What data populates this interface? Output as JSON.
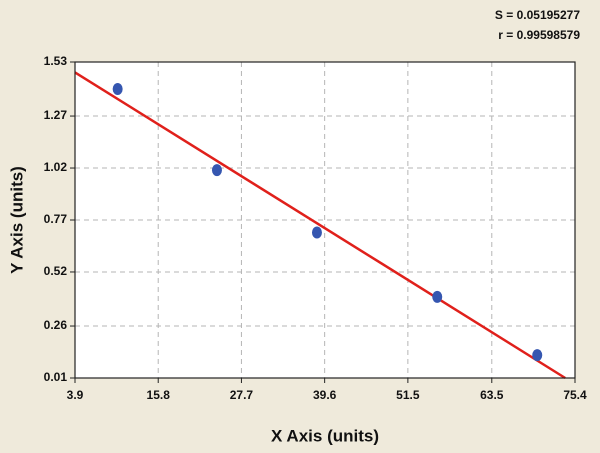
{
  "chart_data": {
    "type": "scatter",
    "x_label": "X Axis (units)",
    "y_label": "Y Axis (units)",
    "annotations": [
      "S = 0.05195277",
      "r = 0.99598579"
    ],
    "x": [
      10.0,
      24.2,
      38.5,
      55.7,
      70.0
    ],
    "values": [
      1.4,
      1.01,
      0.71,
      0.4,
      0.12
    ],
    "color": "#3556b0",
    "fit": {
      "x": [
        3.9,
        74.0
      ],
      "values": [
        1.48,
        0.01
      ],
      "color": "#e0201b"
    },
    "xlim": [
      3.9,
      75.4
    ],
    "xticks": [
      3.9,
      15.8,
      27.7,
      39.6,
      51.5,
      63.5,
      75.4
    ],
    "ylim": [
      0.01,
      1.53
    ],
    "yticks": [
      0.01,
      0.26,
      0.52,
      0.77,
      1.02,
      1.27,
      1.53
    ],
    "grid": true
  }
}
